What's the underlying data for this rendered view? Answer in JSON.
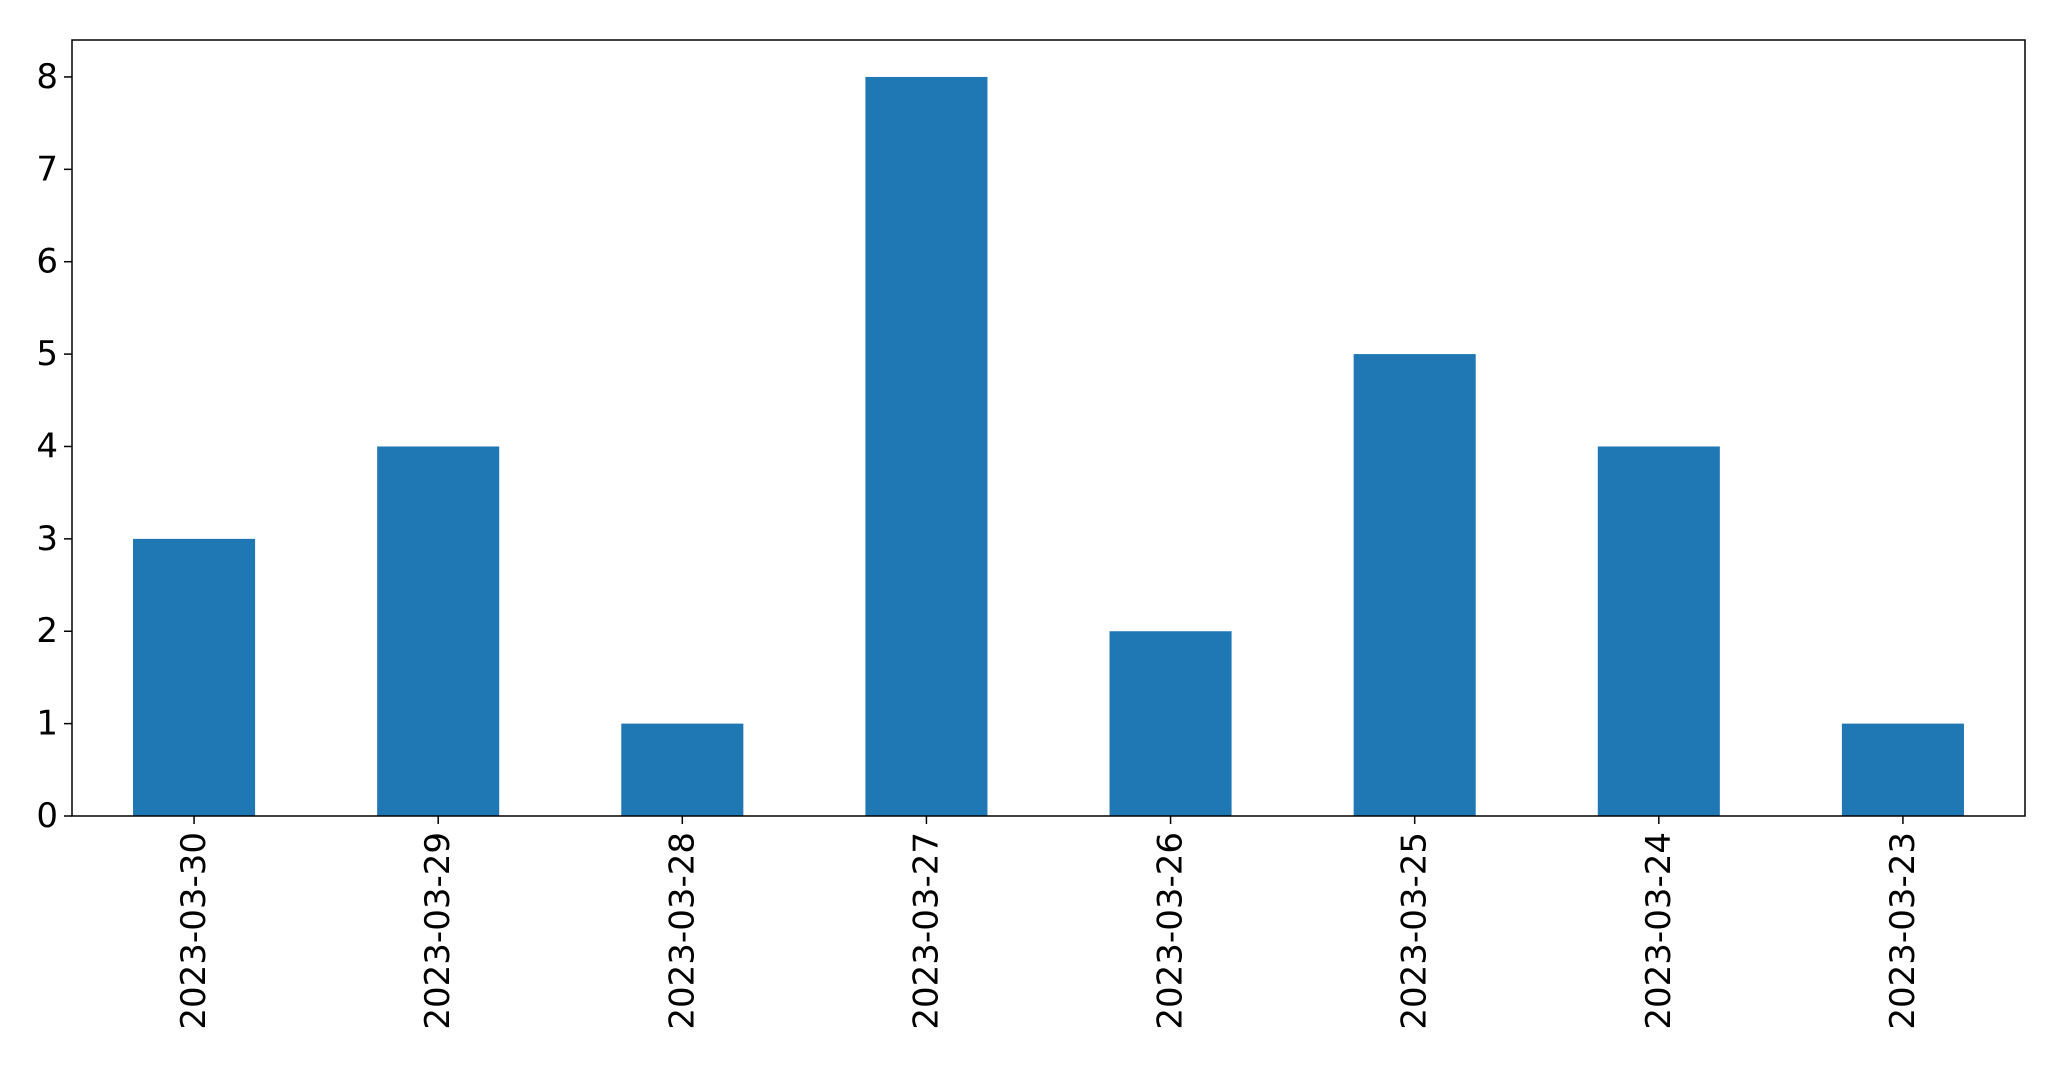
{
  "chart_data": {
    "type": "bar",
    "categories": [
      "2023-03-30",
      "2023-03-29",
      "2023-03-28",
      "2023-03-27",
      "2023-03-26",
      "2023-03-25",
      "2023-03-24",
      "2023-03-23"
    ],
    "values": [
      3,
      4,
      1,
      8,
      2,
      5,
      4,
      1
    ],
    "title": "",
    "xlabel": "",
    "ylabel": "",
    "ylim": [
      0,
      8.4
    ],
    "yticks": [
      "0",
      "1",
      "2",
      "3",
      "4",
      "5",
      "6",
      "7",
      "8"
    ],
    "grid": false,
    "legend": "none",
    "bar_color": "#1f77b4"
  }
}
